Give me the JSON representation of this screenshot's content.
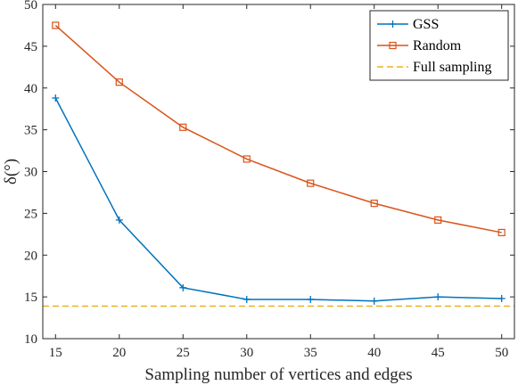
{
  "chart_data": {
    "type": "line",
    "xlabel": "Sampling number of vertices and edges",
    "ylabel": "δ(°)",
    "x": [
      15,
      20,
      25,
      30,
      35,
      40,
      45,
      50
    ],
    "xticks": [
      "15",
      "20",
      "25",
      "30",
      "35",
      "40",
      "45",
      "50"
    ],
    "xlim": [
      14,
      51
    ],
    "ylim": [
      10,
      50
    ],
    "yticks": [
      "10",
      "15",
      "20",
      "25",
      "30",
      "35",
      "40",
      "45",
      "50"
    ],
    "series": [
      {
        "name": "GSS",
        "color": "#0072BD",
        "marker": "plus",
        "values": [
          38.8,
          24.2,
          16.1,
          14.7,
          14.7,
          14.5,
          15.0,
          14.8
        ]
      },
      {
        "name": "Random",
        "color": "#D95319",
        "marker": "square",
        "values": [
          47.5,
          40.7,
          35.3,
          31.5,
          28.6,
          26.2,
          24.2,
          22.7
        ]
      },
      {
        "name": "Full sampling",
        "color": "#EDB120",
        "style": "dashed",
        "constant": 13.9
      }
    ],
    "legend_position": "top-right",
    "grid": false
  }
}
